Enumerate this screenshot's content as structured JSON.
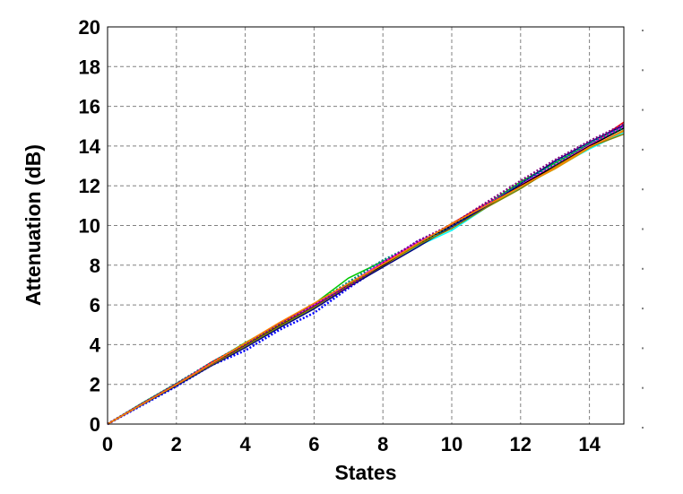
{
  "chart_data": {
    "type": "line",
    "title": "",
    "xlabel": "States",
    "ylabel": "Attenuation (dB)",
    "xlim": [
      0,
      15
    ],
    "ylim": [
      0,
      20
    ],
    "x_ticks": [
      0,
      2,
      4,
      6,
      8,
      10,
      12,
      14
    ],
    "y_ticks": [
      0,
      2,
      4,
      6,
      8,
      10,
      12,
      14,
      16,
      18,
      20
    ],
    "grid": true,
    "legend": "none",
    "x": [
      0,
      1,
      2,
      3,
      4,
      5,
      6,
      7,
      8,
      9,
      10,
      11,
      12,
      13,
      14,
      15
    ],
    "series": [
      {
        "color": "#0000ff",
        "style": "dotted",
        "values": [
          0,
          0.95,
          1.9,
          2.95,
          3.7,
          4.75,
          5.6,
          6.85,
          8.0,
          9.2,
          9.9,
          11.0,
          12.1,
          13.2,
          14.1,
          15.0
        ]
      },
      {
        "color": "#00c800",
        "style": "solid",
        "values": [
          0,
          1.05,
          2.05,
          3.05,
          4.1,
          5.05,
          6.05,
          7.35,
          8.2,
          9.0,
          10.05,
          11.05,
          12.2,
          13.15,
          14.1,
          14.9
        ]
      },
      {
        "color": "#ff0000",
        "style": "solid",
        "values": [
          0,
          1.0,
          2.0,
          3.1,
          4.05,
          5.1,
          5.95,
          7.0,
          8.1,
          9.05,
          10.1,
          11.1,
          12.0,
          13.0,
          14.0,
          15.2
        ]
      },
      {
        "color": "#00ffff",
        "style": "solid",
        "values": [
          0,
          0.98,
          1.95,
          3.0,
          3.9,
          4.9,
          5.85,
          7.1,
          8.0,
          8.95,
          9.75,
          10.9,
          11.9,
          12.9,
          13.85,
          14.7
        ]
      },
      {
        "color": "#ff00ff",
        "style": "solid",
        "values": [
          0,
          1.02,
          2.02,
          3.05,
          3.95,
          5.0,
          6.0,
          7.05,
          8.15,
          9.15,
          10.0,
          11.05,
          12.05,
          13.05,
          14.05,
          15.0
        ]
      },
      {
        "color": "#c8a000",
        "style": "solid",
        "values": [
          0,
          1.0,
          1.98,
          2.98,
          4.0,
          5.02,
          5.9,
          6.95,
          7.95,
          9.0,
          10.1,
          10.95,
          11.95,
          12.85,
          13.9,
          14.8
        ]
      },
      {
        "color": "#000000",
        "style": "solid",
        "values": [
          0,
          1.0,
          2.0,
          3.0,
          3.95,
          4.95,
          5.9,
          7.0,
          8.0,
          9.05,
          10.0,
          11.0,
          12.0,
          13.0,
          14.0,
          14.9
        ]
      },
      {
        "color": "#000080",
        "style": "solid",
        "values": [
          0,
          0.97,
          1.93,
          2.92,
          3.85,
          4.85,
          5.8,
          6.9,
          7.9,
          8.9,
          9.95,
          10.95,
          12.1,
          13.25,
          14.2,
          15.05
        ]
      },
      {
        "color": "#008080",
        "style": "dotted",
        "values": [
          0,
          1.03,
          2.04,
          3.08,
          4.05,
          5.08,
          6.02,
          7.15,
          8.25,
          9.1,
          10.0,
          11.1,
          12.15,
          13.1,
          14.15,
          14.95
        ]
      },
      {
        "color": "#808000",
        "style": "solid",
        "values": [
          0,
          0.99,
          1.97,
          2.96,
          3.92,
          4.92,
          5.88,
          6.98,
          8.05,
          9.0,
          9.85,
          10.9,
          11.85,
          12.95,
          13.95,
          14.6
        ]
      },
      {
        "color": "#800080",
        "style": "dotted",
        "values": [
          0,
          1.01,
          2.01,
          3.02,
          4.02,
          5.05,
          5.98,
          6.92,
          8.1,
          9.2,
          10.05,
          11.15,
          12.25,
          13.3,
          14.25,
          15.1
        ]
      },
      {
        "color": "#ff8000",
        "style": "solid",
        "values": [
          0,
          1.0,
          1.99,
          3.03,
          4.08,
          5.12,
          6.08,
          7.08,
          8.05,
          9.08,
          10.08,
          11.0,
          11.95,
          12.9,
          13.95,
          14.75
        ]
      }
    ],
    "colors": {
      "background": "#ffffff",
      "grid": "#808080",
      "axis": "#000000"
    }
  }
}
